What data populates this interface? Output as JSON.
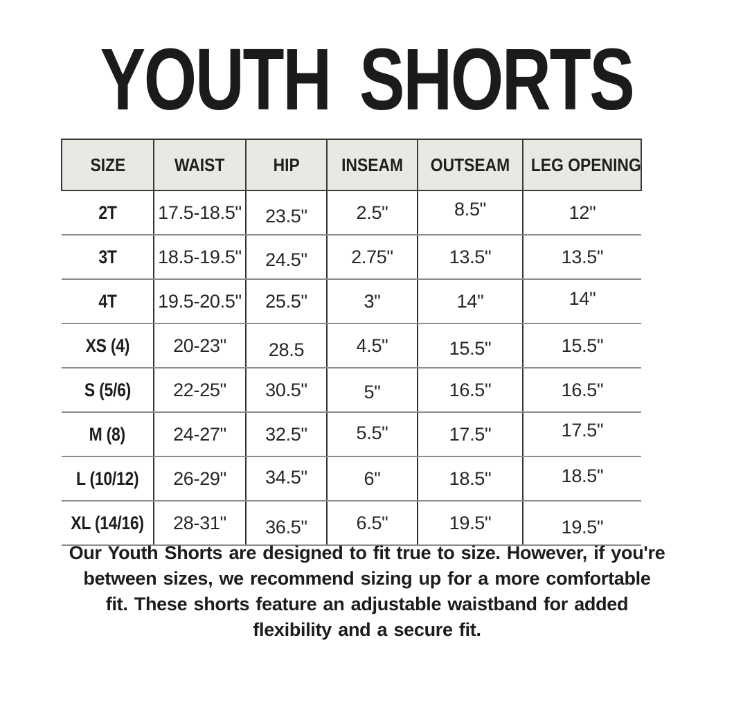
{
  "chart_data": {
    "type": "table",
    "title": "YOUTH SHORTS",
    "columns": [
      "SIZE",
      "WAIST",
      "HIP",
      "INSEAM",
      "OUTSEAM",
      "LEG OPENING"
    ],
    "rows": [
      [
        "2T",
        "17.5-18.5\"",
        "23.5\"",
        "2.5\"",
        "8.5\"",
        "12\""
      ],
      [
        "3T",
        "18.5-19.5\"",
        "24.5\"",
        "2.75\"",
        "13.5\"",
        "13.5\""
      ],
      [
        "4T",
        "19.5-20.5\"",
        "25.5\"",
        "3\"",
        "14\"",
        "14\""
      ],
      [
        "XS (4)",
        "20-23\"",
        "28.5",
        "4.5\"",
        "15.5\"",
        "15.5\""
      ],
      [
        "S (5/6)",
        "22-25\"",
        "30.5\"",
        "5\"",
        "16.5\"",
        "16.5\""
      ],
      [
        "M (8)",
        "24-27\"",
        "32.5\"",
        "5.5\"",
        "17.5\"",
        "17.5\""
      ],
      [
        "L (10/12)",
        "26-29\"",
        "34.5\"",
        "6\"",
        "18.5\"",
        "18.5\""
      ],
      [
        "XL (14/16)",
        "28-31\"",
        "36.5\"",
        "6.5\"",
        "19.5\"",
        "19.5\""
      ]
    ],
    "note_lines": [
      "Our Youth Shorts are designed to fit true to size. However, if you're",
      "between sizes, we recommend sizing up for a more comfortable",
      "fit. These shorts feature an adjustable waistband for added",
      "flexibility and a secure fit."
    ],
    "layout_hints": {
      "legend": "none",
      "grid": "header fully boxed; body has internal column lines and gray row separators only"
    }
  },
  "colors": {
    "background": "#ffffff",
    "header_bg": "#e9e8e2",
    "grid_dark": "#3a3a3a",
    "grid_gray": "#8c8c8c",
    "text": "#1c1c1c"
  }
}
